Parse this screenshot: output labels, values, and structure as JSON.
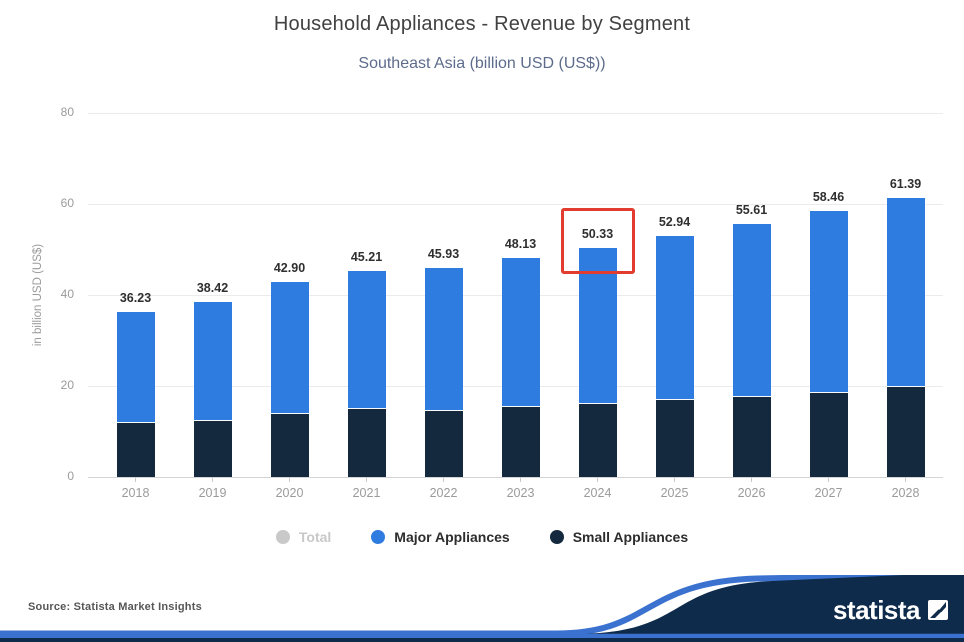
{
  "header": {
    "title": "Household Appliances - Revenue by Segment",
    "subtitle": "Southeast Asia (billion USD (US$))"
  },
  "axes": {
    "y_title": "in billion USD (US$)",
    "y_ticks": [
      0,
      20,
      40,
      60,
      80
    ],
    "y_max": 80
  },
  "chart_data": {
    "type": "bar",
    "stacked": true,
    "title": "Household Appliances - Revenue by Segment",
    "subtitle": "Southeast Asia (billion USD (US$))",
    "xlabel": "",
    "ylabel": "in billion USD (US$)",
    "ylim": [
      0,
      80
    ],
    "yticks": [
      0,
      20,
      40,
      60,
      80
    ],
    "grid": true,
    "legend_position": "bottom",
    "categories": [
      "2018",
      "2019",
      "2020",
      "2021",
      "2022",
      "2023",
      "2024",
      "2025",
      "2026",
      "2027",
      "2028"
    ],
    "series": [
      {
        "name": "Major Appliances",
        "color": "#2e7ce0",
        "values": [
          24.43,
          26.12,
          29.1,
          30.31,
          31.43,
          32.73,
          34.23,
          35.94,
          38.01,
          39.96,
          41.59
        ]
      },
      {
        "name": "Small Appliances",
        "color": "#15293e",
        "values": [
          11.8,
          12.3,
          13.8,
          14.9,
          14.5,
          15.4,
          16.1,
          17.0,
          17.6,
          18.5,
          19.8
        ]
      }
    ],
    "totals": [
      36.23,
      38.42,
      42.9,
      45.21,
      45.93,
      48.13,
      50.33,
      52.94,
      55.61,
      58.46,
      61.39
    ],
    "total_labels": [
      "36.23",
      "38.42",
      "42.90",
      "45.21",
      "45.93",
      "48.13",
      "50.33",
      "52.94",
      "55.61",
      "58.46",
      "61.39"
    ],
    "highlight": {
      "category": "2024",
      "value_label": "50.33",
      "color": "#e23b30"
    }
  },
  "legend": {
    "items": [
      {
        "label": "Total",
        "color": "#c9c9c9",
        "active": false
      },
      {
        "label": "Major Appliances",
        "color": "#2e7ce0",
        "active": true
      },
      {
        "label": "Small Appliances",
        "color": "#15293e",
        "active": true
      }
    ]
  },
  "footer": {
    "source": "Source: Statista Market Insights",
    "logo_text": "statista"
  },
  "brand": {
    "navy": "#0e2b4c",
    "blue": "#3b72cf"
  }
}
